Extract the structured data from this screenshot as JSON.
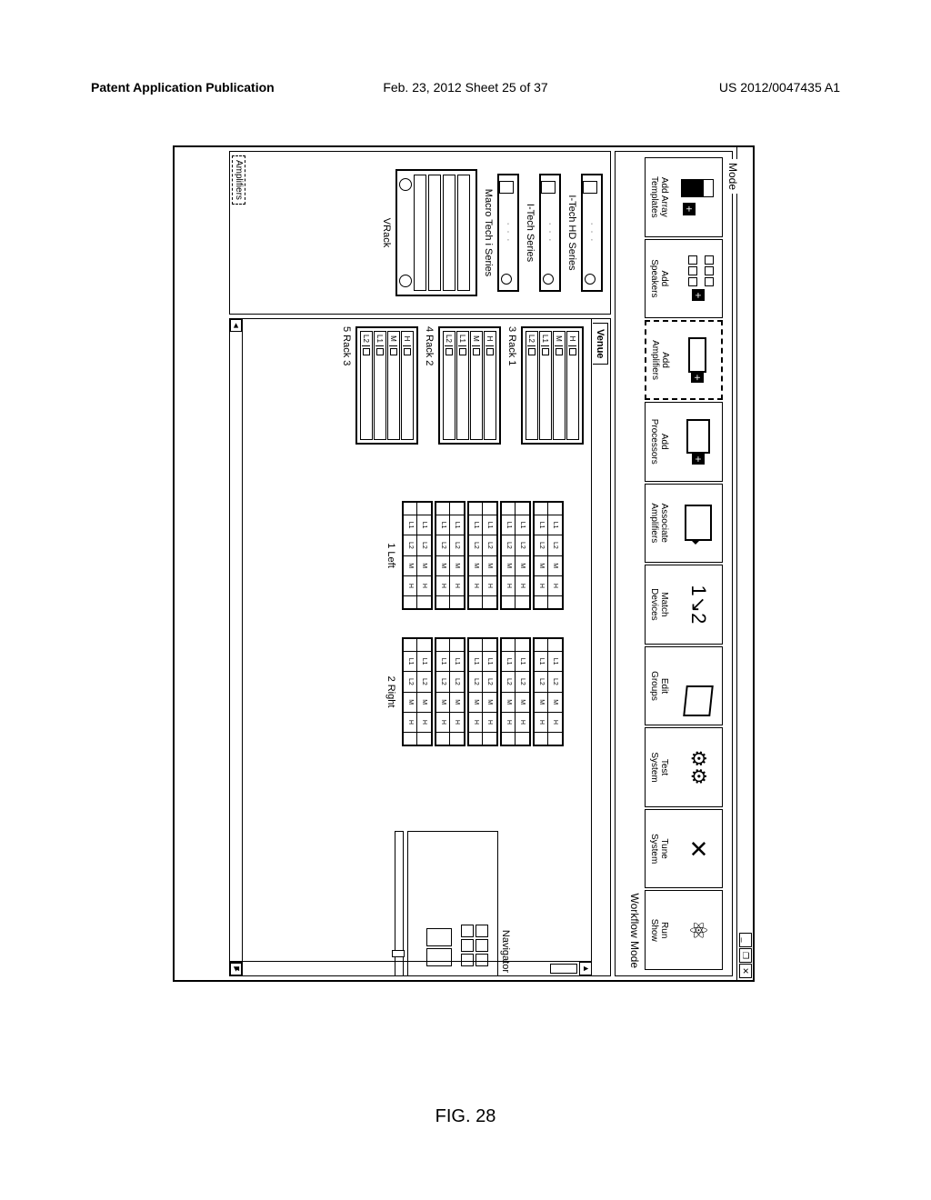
{
  "header": {
    "left": "Patent Application Publication",
    "center": "Feb. 23, 2012  Sheet 25 of 37",
    "right": "US 2012/0047435 A1"
  },
  "figlabel": "FIG. 28",
  "titlebar": {
    "min": "_",
    "max": "❐",
    "close": "✕"
  },
  "modeFrame": {
    "tab": "Mode",
    "workflow": "Workflow Mode"
  },
  "tools": [
    {
      "label": "Add Array\nTemplates",
      "icon": "array",
      "sel": false
    },
    {
      "label": "Add\nSpeakers",
      "icon": "spk",
      "sel": false
    },
    {
      "label": "Add\nAmplifiers",
      "icon": "amp",
      "sel": true
    },
    {
      "label": "Add\nProcessors",
      "icon": "proc",
      "sel": false
    },
    {
      "label": "Associate\nAmplifiers",
      "icon": "assoc",
      "sel": false
    },
    {
      "label": "Match\nDevices",
      "icon": "match",
      "sel": false
    },
    {
      "label": "Edit\nGroups",
      "icon": "edit",
      "sel": false
    },
    {
      "label": "Test\nSystem",
      "icon": "gears",
      "sel": false
    },
    {
      "label": "Tune\nSystem",
      "icon": "tune",
      "sel": false
    },
    {
      "label": "Run\nShow",
      "icon": "atom",
      "sel": false
    }
  ],
  "leftPanel": {
    "items": [
      {
        "label": "I-Tech HD Series"
      },
      {
        "label": "I-Tech Series"
      },
      {
        "label": "Macro Tech i Series"
      }
    ],
    "vrack": "VRack",
    "tab": "Amplifiers"
  },
  "venue": {
    "tab": "Venue"
  },
  "racks": [
    {
      "label": "3 Rack 1",
      "slots": [
        "H",
        "M",
        "L1",
        "L2"
      ]
    },
    {
      "label": "4 Rack 2",
      "slots": [
        "H",
        "M",
        "L1",
        "L2"
      ]
    },
    {
      "label": "5 Rack 3",
      "slots": [
        "H",
        "M",
        "L1",
        "L2"
      ]
    }
  ],
  "arrays": [
    {
      "label": "1 Left",
      "cabinets": 5
    },
    {
      "label": "2 Right",
      "cabinets": 5
    }
  ],
  "cabRows": [
    [
      "L1",
      "L2",
      "M",
      "H"
    ],
    [
      "L1",
      "L2",
      "M",
      "H"
    ]
  ],
  "navigator": {
    "label": "Navigator"
  },
  "scroll": {
    "up": "▲",
    "down": "▼",
    "left": "◄",
    "right": "►"
  }
}
